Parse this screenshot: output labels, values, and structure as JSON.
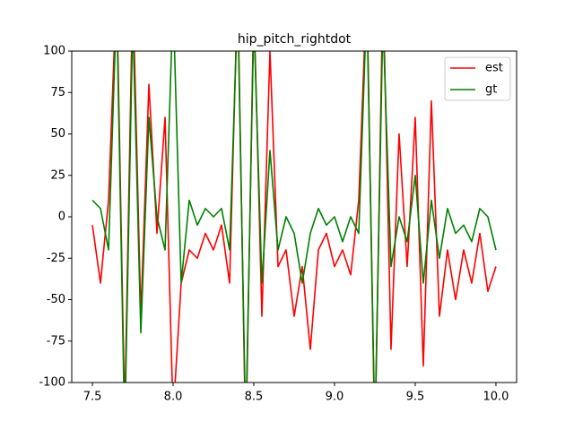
{
  "chart_data": {
    "type": "line",
    "title": "hip_pitch_rightdot",
    "x": [
      7.5,
      7.55,
      7.6,
      7.65,
      7.7,
      7.75,
      7.8,
      7.85,
      7.9,
      7.95,
      8.0,
      8.05,
      8.1,
      8.15,
      8.2,
      8.25,
      8.3,
      8.35,
      8.4,
      8.45,
      8.5,
      8.55,
      8.6,
      8.65,
      8.7,
      8.75,
      8.8,
      8.85,
      8.9,
      8.95,
      9.0,
      9.05,
      9.1,
      9.15,
      9.2,
      9.25,
      9.3,
      9.35,
      9.4,
      9.45,
      9.5,
      9.55,
      9.6,
      9.65,
      9.7,
      9.75,
      9.8,
      9.85,
      9.9,
      9.95,
      10.0
    ],
    "series": [
      {
        "name": "est",
        "color": "#ff0000",
        "values": [
          -5,
          -40,
          10,
          140,
          -120,
          140,
          -60,
          80,
          -10,
          60,
          -120,
          -40,
          -20,
          -25,
          -10,
          -20,
          -5,
          -40,
          140,
          -140,
          130,
          -60,
          100,
          -30,
          -20,
          -60,
          -30,
          -80,
          -20,
          -10,
          -30,
          -20,
          -35,
          10,
          140,
          -140,
          140,
          -80,
          50,
          -30,
          60,
          -90,
          70,
          -60,
          -20,
          -50,
          -20,
          -40,
          -10,
          -45,
          -30
        ]
      },
      {
        "name": "gt",
        "color": "#008000",
        "values": [
          10,
          5,
          -20,
          130,
          -130,
          120,
          -70,
          60,
          0,
          -20,
          130,
          -40,
          10,
          -5,
          5,
          0,
          5,
          -20,
          130,
          -130,
          120,
          -40,
          40,
          -20,
          0,
          -10,
          -40,
          -10,
          5,
          -5,
          0,
          -15,
          0,
          -10,
          130,
          -130,
          120,
          -30,
          0,
          -15,
          25,
          -40,
          10,
          -25,
          5,
          -10,
          -5,
          -15,
          5,
          0,
          -20
        ]
      }
    ],
    "xlim": [
      7.372,
      10.128
    ],
    "ylim": [
      -100,
      100
    ],
    "xticks": [
      7.5,
      {
        "value": 8,
        "label": "8.0"
      },
      8.5,
      {
        "value": 9,
        "label": "9.0"
      },
      9.5,
      {
        "value": 10,
        "label": "10.0"
      }
    ],
    "yticks": [
      -100,
      -75,
      -50,
      -25,
      0,
      25,
      50,
      75,
      100
    ],
    "legend": "upper right"
  }
}
